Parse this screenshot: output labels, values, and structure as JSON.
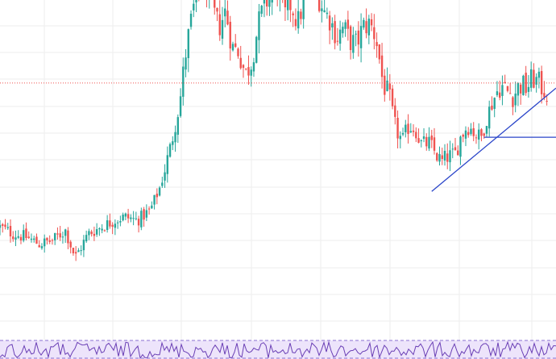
{
  "chart_data": {
    "type": "candlestick",
    "price_line_level": 75.5,
    "ylim": [
      0,
      100
    ],
    "x_range": [
      0,
      170
    ],
    "colors": {
      "up": "#26a69a",
      "down": "#ef5350",
      "gridline": "#eeeeee",
      "price_line": "#ef5350",
      "trendline": "#2a45c9",
      "oscillator_line": "#6a3fb5",
      "oscillator_band": "#ede4fb",
      "oscillator_band_border": "#8a6fd1"
    },
    "price_path": [
      [
        0,
        33
      ],
      [
        4,
        31
      ],
      [
        8,
        30
      ],
      [
        12,
        28
      ],
      [
        16,
        29
      ],
      [
        20,
        32
      ],
      [
        23,
        24
      ],
      [
        27,
        31
      ],
      [
        31,
        33
      ],
      [
        35,
        35
      ],
      [
        38,
        36
      ],
      [
        42,
        35
      ],
      [
        46,
        38
      ],
      [
        49,
        45
      ],
      [
        52,
        56
      ],
      [
        55,
        70
      ],
      [
        57,
        86
      ],
      [
        59,
        97
      ],
      [
        61,
        103
      ],
      [
        63,
        104
      ],
      [
        65,
        97
      ],
      [
        67,
        92
      ],
      [
        69,
        97
      ],
      [
        71,
        86
      ],
      [
        73,
        85
      ],
      [
        75,
        78
      ],
      [
        77,
        82
      ],
      [
        79,
        93
      ],
      [
        81,
        99
      ],
      [
        83,
        101
      ],
      [
        85,
        103
      ],
      [
        87,
        95
      ],
      [
        89,
        99
      ],
      [
        91,
        93
      ],
      [
        93,
        100
      ],
      [
        95,
        105
      ],
      [
        97,
        102
      ],
      [
        99,
        97
      ],
      [
        101,
        94
      ],
      [
        103,
        89
      ],
      [
        105,
        92
      ],
      [
        107,
        88
      ],
      [
        109,
        87
      ],
      [
        111,
        92
      ],
      [
        113,
        93
      ],
      [
        115,
        89
      ],
      [
        117,
        76
      ],
      [
        119,
        71
      ],
      [
        121,
        62
      ],
      [
        123,
        58
      ],
      [
        125,
        63
      ],
      [
        127,
        62
      ],
      [
        129,
        57
      ],
      [
        131,
        58
      ],
      [
        133,
        55
      ],
      [
        135,
        52
      ],
      [
        137,
        54
      ],
      [
        139,
        54
      ],
      [
        141,
        60
      ],
      [
        143,
        63
      ],
      [
        145,
        61
      ],
      [
        147,
        59
      ],
      [
        149,
        66
      ],
      [
        151,
        71
      ],
      [
        153,
        75
      ],
      [
        155,
        73
      ],
      [
        157,
        72
      ],
      [
        159,
        75
      ],
      [
        161,
        74
      ],
      [
        163,
        77
      ],
      [
        165,
        75
      ],
      [
        167,
        73
      ],
      [
        168,
        71
      ]
    ],
    "trendlines": [
      {
        "from": [
          132,
          43.5
        ],
        "to": [
          170,
          74
        ]
      },
      {
        "from": [
          148,
          59.5
        ],
        "to": [
          170,
          59.5
        ]
      }
    ]
  }
}
